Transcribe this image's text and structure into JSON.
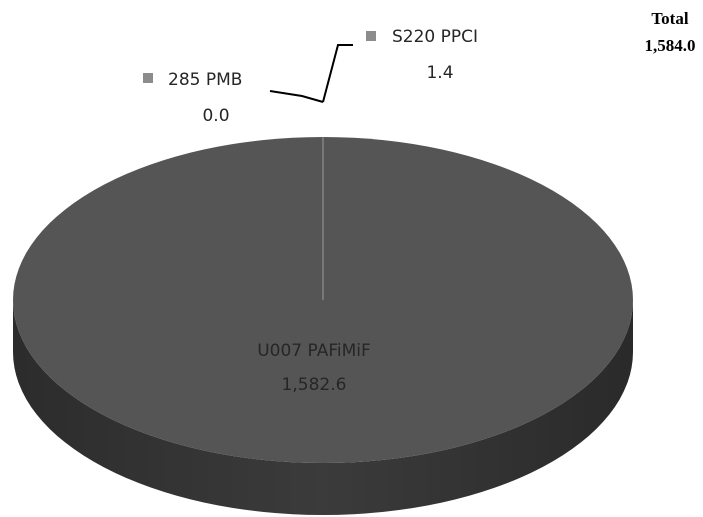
{
  "chart_data": {
    "type": "pie",
    "style": "3d",
    "slices": [
      {
        "label": "U007 PAFiMiF",
        "value_text": "1,582.6",
        "value": 1582.6
      },
      {
        "label": "S220 PPCI",
        "value_text": "1.4",
        "value": 1.4
      },
      {
        "label": "285 PMB",
        "value_text": "0.0",
        "value": 0.0
      }
    ],
    "total": {
      "label": "Total",
      "value_text": "1,584.0",
      "value": 1584.0
    },
    "legend": "none",
    "colors": {
      "main_top": "#555555",
      "main_side": "#3a3a3a",
      "main_side_dark": "#2e2e2e",
      "small_slice": "#8c8c8c",
      "leader_line": "#000000",
      "label_text": "#262626"
    }
  }
}
